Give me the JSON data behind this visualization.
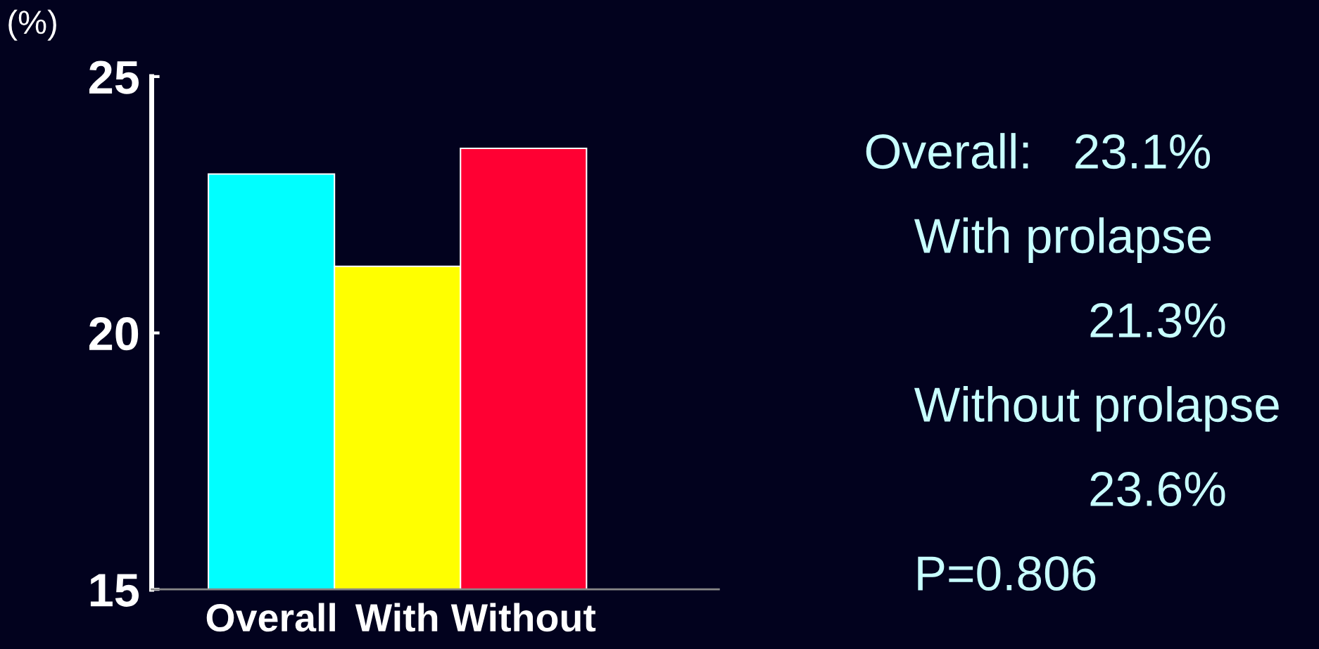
{
  "chart_data": {
    "type": "bar",
    "ylabel": "(%)",
    "categories": [
      "Overall",
      "With",
      "Without"
    ],
    "values": [
      23.1,
      21.3,
      23.6
    ],
    "colors": [
      "#00ffff",
      "#ffff00",
      "#ff0033"
    ],
    "ylim": [
      15,
      25
    ],
    "yticks": [
      15,
      20,
      25
    ],
    "grid": false,
    "annotations": [
      "Overall:   23.1%",
      "With prolapse",
      "21.3%",
      "Without prolapse",
      "23.6%",
      "P=0.806"
    ]
  }
}
